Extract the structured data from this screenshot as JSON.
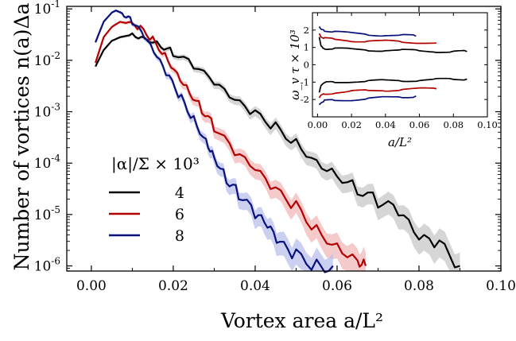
{
  "chart_data": [
    {
      "type": "line",
      "title": "",
      "xlabel": "Vortex area  a/L²",
      "ylabel": "Number of vortices  n(a)Δa",
      "xlim": [
        -0.006,
        0.1
      ],
      "ylim": [
        -6.1,
        -0.95
      ],
      "yscale": "log",
      "grid": false,
      "legend_position": "left",
      "x_ticks": [
        {
          "v": 0.0,
          "label": "0.00"
        },
        {
          "v": 0.02,
          "label": "0.02"
        },
        {
          "v": 0.04,
          "label": "0.04"
        },
        {
          "v": 0.06,
          "label": "0.06"
        },
        {
          "v": 0.08,
          "label": "0.08"
        },
        {
          "v": 0.1,
          "label": "0.10"
        }
      ],
      "y_ticks": [
        {
          "v": -1,
          "base": "10",
          "exp": "-1"
        },
        {
          "v": -2,
          "base": "10",
          "exp": "-2"
        },
        {
          "v": -3,
          "base": "10",
          "exp": "-3"
        },
        {
          "v": -4,
          "base": "10",
          "exp": "-4"
        },
        {
          "v": -5,
          "base": "10",
          "exp": "-5"
        },
        {
          "v": -6,
          "base": "10",
          "exp": "-6"
        }
      ],
      "legend_title": "|α|/Σ × 10³",
      "series": [
        {
          "name": "4",
          "color": "#000000",
          "band_color": "#c8c8c8",
          "x": [
            0.001,
            0.003,
            0.005,
            0.007,
            0.01,
            0.013,
            0.017,
            0.02,
            0.025,
            0.03,
            0.035,
            0.04,
            0.045,
            0.05,
            0.055,
            0.06,
            0.065,
            0.07,
            0.075,
            0.08,
            0.085,
            0.09
          ],
          "log10_y": [
            -2.12,
            -1.8,
            -1.62,
            -1.55,
            -1.5,
            -1.55,
            -1.7,
            -1.85,
            -2.1,
            -2.45,
            -2.8,
            -3.05,
            -3.3,
            -3.6,
            -3.95,
            -4.2,
            -4.5,
            -4.75,
            -4.95,
            -5.5,
            -5.6,
            -6.0
          ]
        },
        {
          "name": "6",
          "color": "#b30000",
          "band_color": "#f1b8b8",
          "x": [
            0.001,
            0.003,
            0.005,
            0.007,
            0.009,
            0.012,
            0.015,
            0.018,
            0.021,
            0.024,
            0.027,
            0.03,
            0.035,
            0.04,
            0.045,
            0.05,
            0.055,
            0.06,
            0.065,
            0.067
          ],
          "log10_y": [
            -2.05,
            -1.55,
            -1.35,
            -1.25,
            -1.28,
            -1.38,
            -1.6,
            -1.9,
            -2.25,
            -2.6,
            -2.95,
            -3.3,
            -3.8,
            -4.15,
            -4.55,
            -4.85,
            -5.3,
            -5.6,
            -5.85,
            -6.0
          ]
        },
        {
          "name": "8",
          "color": "#08107a",
          "band_color": "#b9c0ec",
          "x": [
            0.001,
            0.003,
            0.005,
            0.006,
            0.008,
            0.01,
            0.013,
            0.016,
            0.019,
            0.022,
            0.025,
            0.028,
            0.03,
            0.033,
            0.036,
            0.04,
            0.043,
            0.046,
            0.05,
            0.055,
            0.059
          ],
          "log10_y": [
            -1.65,
            -1.25,
            -1.07,
            -1.03,
            -1.1,
            -1.25,
            -1.55,
            -1.95,
            -2.35,
            -2.75,
            -3.15,
            -3.55,
            -3.85,
            -4.3,
            -4.6,
            -5.0,
            -5.25,
            -5.6,
            -5.8,
            -6.0,
            -6.0
          ]
        }
      ]
    },
    {
      "type": "line",
      "title": "",
      "xlabel": "a/L²",
      "ylabel": "ω_v τ × 10³",
      "xlim": [
        -0.003,
        0.1
      ],
      "ylim": [
        -3,
        3
      ],
      "grid": false,
      "x_ticks": [
        {
          "v": 0.0,
          "label": "0.00"
        },
        {
          "v": 0.02,
          "label": "0.02"
        },
        {
          "v": 0.04,
          "label": "0.04"
        },
        {
          "v": 0.06,
          "label": "0.06"
        },
        {
          "v": 0.08,
          "label": "0.08"
        },
        {
          "v": 0.1,
          "label": "0.10"
        }
      ],
      "y_ticks": [
        {
          "v": 2,
          "label": "2"
        },
        {
          "v": 1,
          "label": "1"
        },
        {
          "v": 0,
          "label": "0"
        },
        {
          "v": -1,
          "label": "-1"
        },
        {
          "v": -2,
          "label": "-2"
        }
      ],
      "series": [
        {
          "name": "4",
          "color": "#000000",
          "x": [
            0.001,
            0.002,
            0.003,
            0.005,
            0.01,
            0.02,
            0.03,
            0.04,
            0.05,
            0.06,
            0.07,
            0.08,
            0.088
          ],
          "y_pos": [
            1.6,
            1.1,
            1.0,
            0.95,
            0.92,
            0.88,
            0.86,
            0.84,
            0.82,
            0.8,
            0.78,
            0.77,
            0.76
          ],
          "y_neg": [
            -1.6,
            -1.2,
            -1.1,
            -1.05,
            -1.0,
            -0.95,
            -0.95,
            -0.92,
            -0.9,
            -0.88,
            -0.86,
            -0.85,
            -0.82
          ]
        },
        {
          "name": "6",
          "color": "#b30000",
          "x": [
            0.001,
            0.002,
            0.004,
            0.01,
            0.02,
            0.03,
            0.04,
            0.05,
            0.06,
            0.07
          ],
          "y_pos": [
            1.8,
            1.6,
            1.5,
            1.45,
            1.4,
            1.37,
            1.35,
            1.32,
            1.3,
            1.25
          ],
          "y_neg": [
            -1.9,
            -1.75,
            -1.65,
            -1.6,
            -1.55,
            -1.5,
            -1.45,
            -1.42,
            -1.4,
            -1.38
          ]
        },
        {
          "name": "8",
          "color": "#08107a",
          "x": [
            0.001,
            0.002,
            0.004,
            0.01,
            0.02,
            0.03,
            0.04,
            0.05,
            0.058
          ],
          "y_pos": [
            2.2,
            2.05,
            2.0,
            1.9,
            1.8,
            1.75,
            1.72,
            1.68,
            1.65
          ],
          "y_neg": [
            -2.3,
            -2.2,
            -2.1,
            -2.05,
            -2.0,
            -1.95,
            -1.9,
            -1.85,
            -1.8
          ]
        }
      ]
    }
  ]
}
